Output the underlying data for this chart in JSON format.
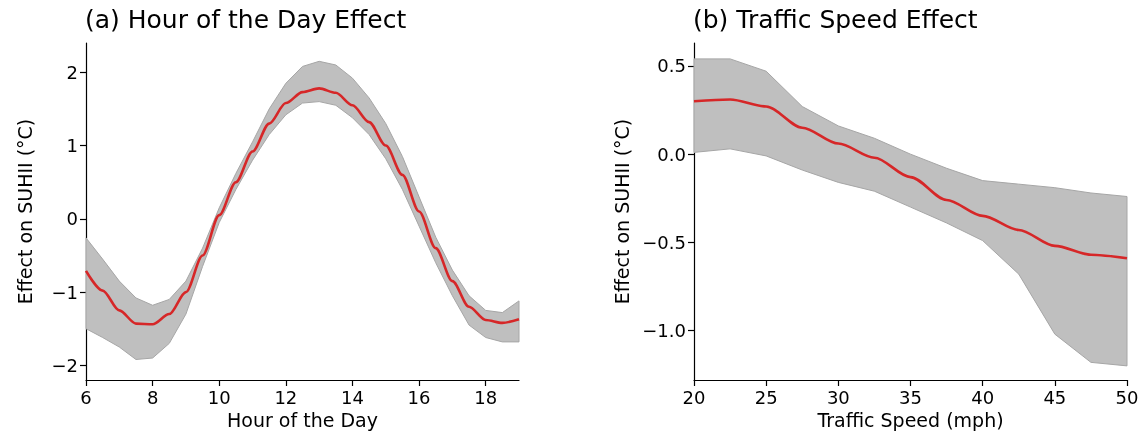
{
  "chart_data": [
    {
      "type": "line",
      "title": "(a) Hour of the Day Effect",
      "xlabel": "Hour of the Day",
      "ylabel": "Effect on SUHII (°C)",
      "xlim": [
        6,
        19
      ],
      "ylim": [
        -2.2,
        2.4
      ],
      "xticks": [
        6,
        8,
        10,
        12,
        14,
        16,
        18
      ],
      "yticks": [
        {
          "value": -2,
          "label": "−2"
        },
        {
          "value": -1,
          "label": "−1"
        },
        0,
        1,
        2
      ],
      "x": [
        6,
        6.5,
        7,
        7.5,
        8,
        8.5,
        9,
        9.5,
        10,
        10.5,
        11,
        11.5,
        12,
        12.5,
        13,
        13.5,
        14,
        14.5,
        15,
        15.5,
        16,
        16.5,
        17,
        17.5,
        18,
        18.5,
        19
      ],
      "series": [
        {
          "color": "#d62728",
          "values": [
            -0.71,
            -0.98,
            -1.25,
            -1.43,
            -1.44,
            -1.3,
            -1.0,
            -0.5,
            0.05,
            0.5,
            0.92,
            1.3,
            1.58,
            1.73,
            1.78,
            1.72,
            1.55,
            1.32,
            1.0,
            0.6,
            0.1,
            -0.4,
            -0.85,
            -1.2,
            -1.38,
            -1.42,
            -1.37
          ],
          "lower": [
            -1.5,
            -1.62,
            -1.75,
            -1.92,
            -1.9,
            -1.7,
            -1.3,
            -0.65,
            -0.05,
            0.4,
            0.8,
            1.15,
            1.42,
            1.58,
            1.6,
            1.55,
            1.38,
            1.15,
            0.82,
            0.4,
            -0.1,
            -0.6,
            -1.05,
            -1.45,
            -1.62,
            -1.68,
            -1.68
          ],
          "upper": [
            -0.26,
            -0.55,
            -0.85,
            -1.08,
            -1.18,
            -1.1,
            -0.85,
            -0.4,
            0.15,
            0.62,
            1.05,
            1.5,
            1.85,
            2.08,
            2.15,
            2.1,
            1.92,
            1.65,
            1.3,
            0.85,
            0.3,
            -0.25,
            -0.7,
            -1.05,
            -1.25,
            -1.28,
            -1.12
          ]
        }
      ]
    },
    {
      "type": "line",
      "title": "(b) Traffic Speed Effect",
      "xlabel": "Traffic Speed (mph)",
      "ylabel": "Effect on SUHII (°C)",
      "xlim": [
        20,
        50
      ],
      "ylim": [
        -1.28,
        0.63
      ],
      "xticks": [
        20,
        25,
        30,
        35,
        40,
        45,
        50
      ],
      "yticks": [
        {
          "value": -1,
          "label": "−1.0"
        },
        {
          "value": -0.5,
          "label": "−0.5"
        },
        {
          "value": 0,
          "label": "0.0"
        },
        {
          "value": 0.5,
          "label": "0.5"
        }
      ],
      "x": [
        20,
        22.5,
        25,
        27.5,
        30,
        32.5,
        35,
        37.5,
        40,
        42.5,
        45,
        47.5,
        50
      ],
      "series": [
        {
          "color": "#d62728",
          "values": [
            0.3,
            0.31,
            0.27,
            0.15,
            0.06,
            -0.02,
            -0.13,
            -0.26,
            -0.35,
            -0.43,
            -0.52,
            -0.57,
            -0.59
          ],
          "lower": [
            0.01,
            0.03,
            -0.01,
            -0.09,
            -0.16,
            -0.21,
            -0.3,
            -0.39,
            -0.49,
            -0.68,
            -1.02,
            -1.18,
            -1.2
          ],
          "upper": [
            0.54,
            0.54,
            0.47,
            0.27,
            0.16,
            0.09,
            0.0,
            -0.08,
            -0.15,
            -0.17,
            -0.19,
            -0.22,
            -0.24
          ]
        }
      ]
    }
  ]
}
